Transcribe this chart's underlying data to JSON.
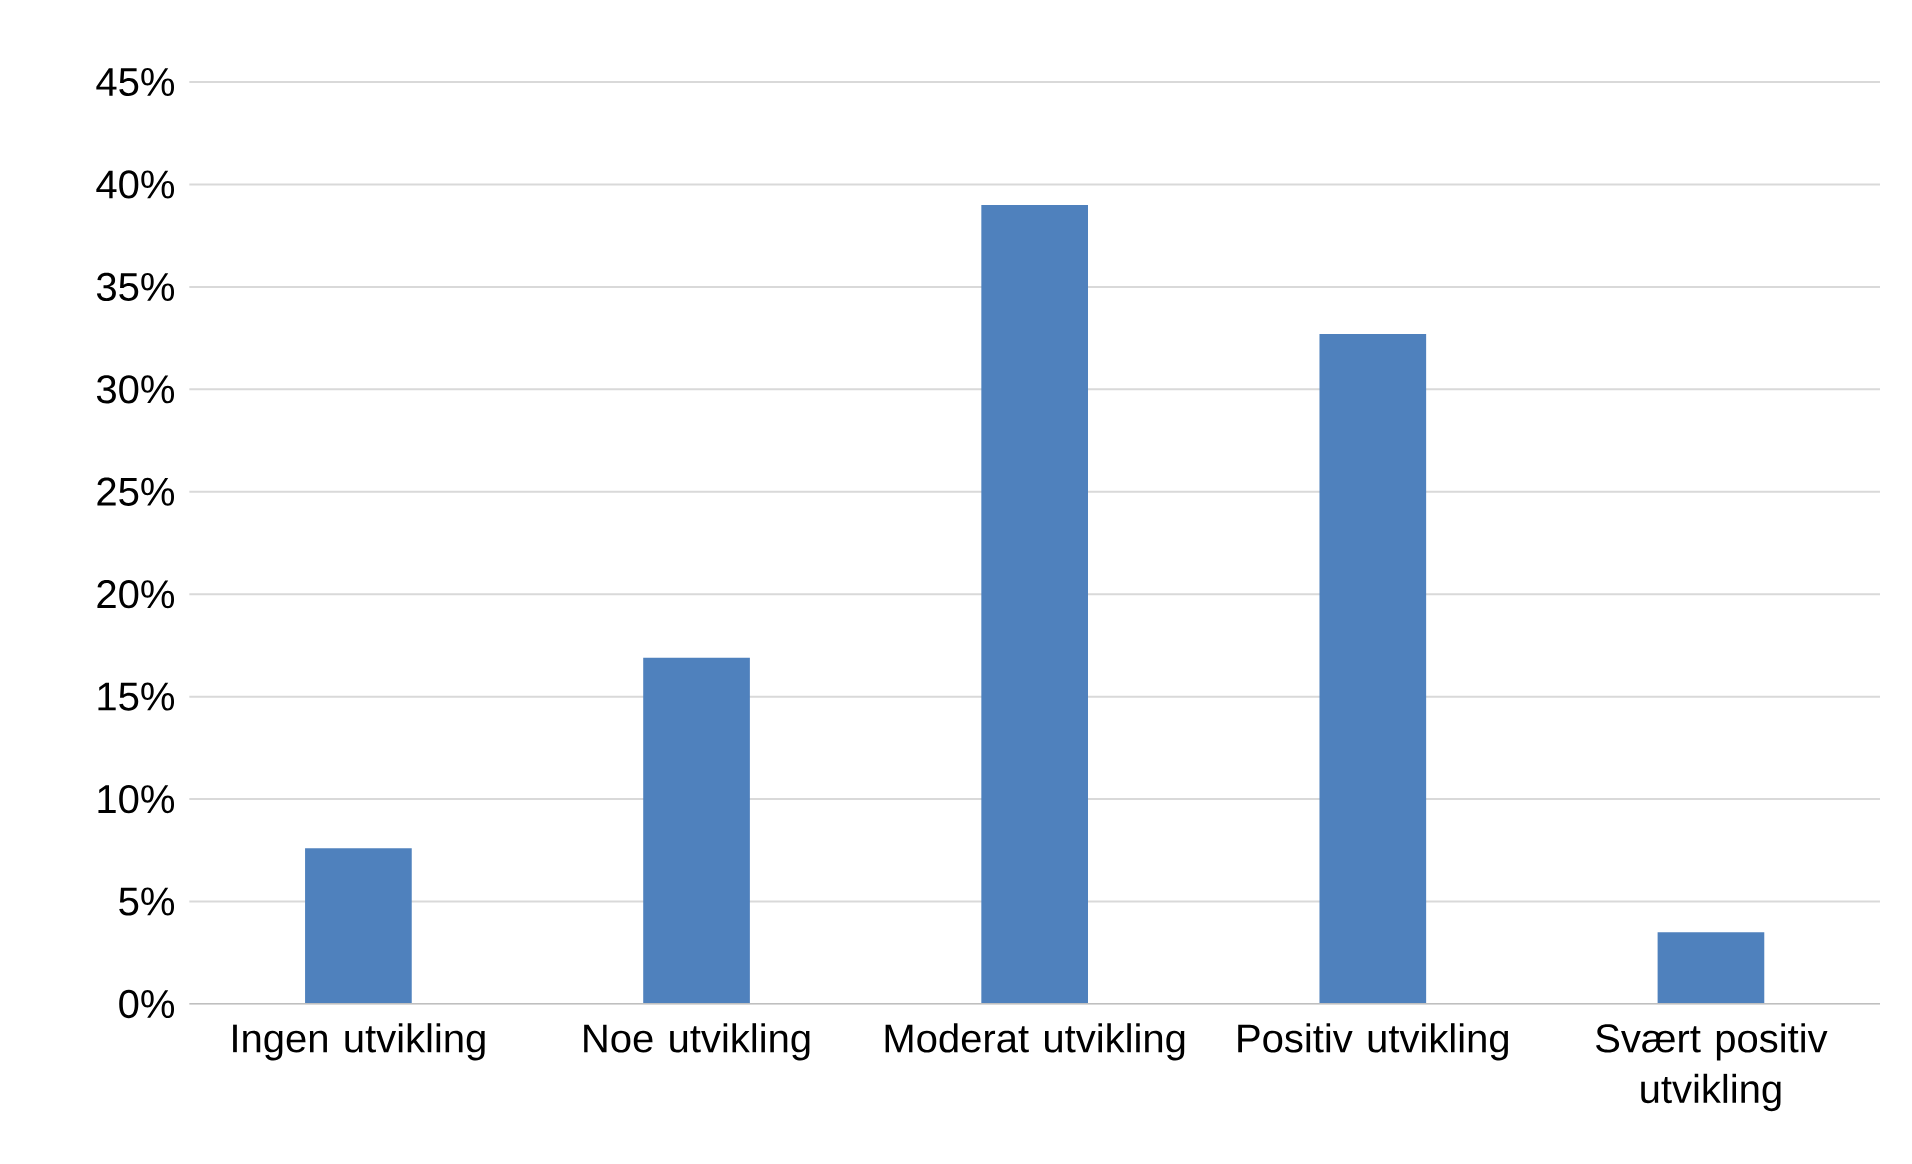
{
  "chart_data": {
    "type": "bar",
    "categories": [
      "Ingen utvikling",
      "Noe utvikling",
      "Moderat utvikling",
      "Positiv utvikling",
      "Svært positiv utvikling"
    ],
    "values": [
      7.6,
      16.9,
      39.0,
      32.7,
      3.5
    ],
    "color": "#4f81bd",
    "ylim": [
      0,
      45
    ],
    "yticks": [
      {
        "value": 0,
        "label": "0%"
      },
      {
        "value": 5,
        "label": "5%"
      },
      {
        "value": 10,
        "label": "10%"
      },
      {
        "value": 15,
        "label": "15%"
      },
      {
        "value": 20,
        "label": "20%"
      },
      {
        "value": 25,
        "label": "25%"
      },
      {
        "value": 30,
        "label": "30%"
      },
      {
        "value": 35,
        "label": "35%"
      },
      {
        "value": 40,
        "label": "40%"
      },
      {
        "value": 45,
        "label": "45%"
      }
    ],
    "grid": "y"
  }
}
